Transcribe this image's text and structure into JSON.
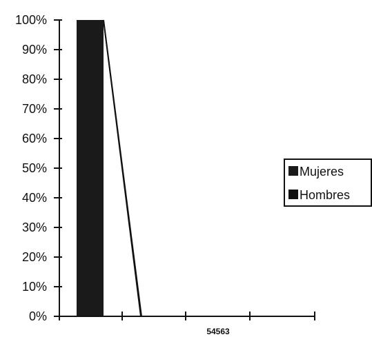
{
  "chart_data": {
    "type": "area",
    "title": "",
    "xlabel": "",
    "ylabel": "",
    "categories": [
      "",
      "54563",
      ""
    ],
    "category_label": "54563",
    "y_ticks": [
      "0%",
      "10%",
      "20%",
      "30%",
      "40%",
      "50%",
      "60%",
      "70%",
      "80%",
      "90%",
      "100%"
    ],
    "ylim": [
      0,
      100
    ],
    "series": [
      {
        "name": "Mujeres",
        "values": [
          100,
          0,
          0
        ],
        "color": "#1a1a1a"
      },
      {
        "name": "Hombres",
        "values": [
          100,
          100,
          0
        ],
        "color": "#111111"
      }
    ],
    "grid": false,
    "legend": {
      "placement": "right",
      "items": [
        {
          "label": "Mujeres",
          "color": "#1a1a1a"
        },
        {
          "label": "Hombres",
          "color": "#111111"
        }
      ]
    }
  }
}
